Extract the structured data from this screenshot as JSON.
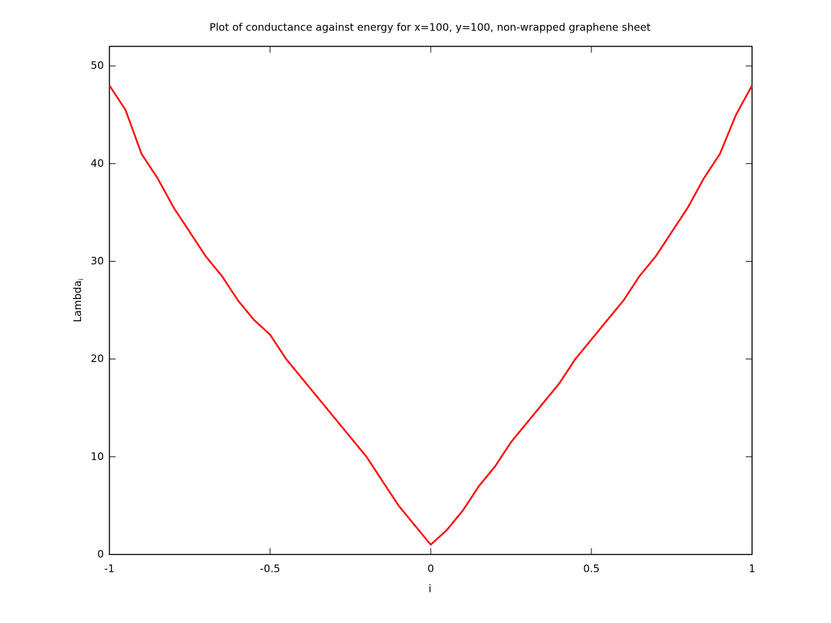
{
  "chart_data": {
    "type": "line",
    "title": "Plot of conductance against energy for x=100, y=100, non-wrapped graphene sheet",
    "x_label": "i",
    "y_label": "Lambda",
    "y_label_subscript": "i",
    "xlim": [
      -1,
      1
    ],
    "xticks": [
      -1,
      -0.5,
      0,
      0.5,
      1
    ],
    "ylim": [
      0,
      52
    ],
    "yticks": [
      0,
      10,
      20,
      30,
      40,
      50
    ],
    "series": [
      {
        "color": "#ff0000",
        "x": [
          -1,
          -0.95,
          -0.9,
          -0.85,
          -0.8,
          -0.75,
          -0.7,
          -0.65,
          -0.6,
          -0.55,
          -0.5,
          -0.45,
          -0.4,
          -0.35,
          -0.3,
          -0.25,
          -0.2,
          -0.15,
          -0.1,
          -0.05,
          0,
          0.05,
          0.1,
          0.15,
          0.2,
          0.25,
          0.3,
          0.35,
          0.4,
          0.45,
          0.5,
          0.55,
          0.6,
          0.65,
          0.7,
          0.75,
          0.8,
          0.85,
          0.9,
          0.95,
          1
        ],
        "values": [
          48,
          45.5,
          41,
          38.5,
          35.5,
          33,
          30.5,
          28.5,
          26,
          24,
          22.5,
          20,
          18,
          16,
          14,
          12,
          10,
          7.5,
          5,
          3,
          1,
          2.5,
          4.5,
          7,
          9,
          11.5,
          13.5,
          15.5,
          17.5,
          20,
          22,
          24,
          26,
          28.5,
          30.5,
          33,
          35.5,
          38.5,
          41,
          45,
          48
        ]
      }
    ]
  }
}
